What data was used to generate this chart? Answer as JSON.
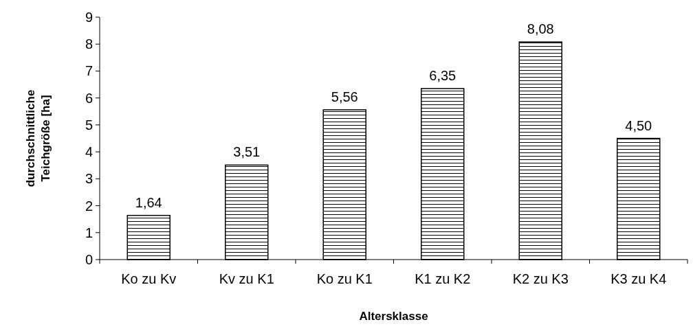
{
  "chart_data": {
    "type": "bar",
    "xlabel": "Altersklasse",
    "ylabel": "durchschnittliche Teichgröße [ha]",
    "categories": [
      "Ko zu Kv",
      "Kv zu K1",
      "Ko zu K1",
      "K1 zu K2",
      "K2 zu K3",
      "K3 zu K4"
    ],
    "values": [
      1.64,
      3.51,
      5.56,
      6.35,
      8.08,
      4.5
    ],
    "value_labels": [
      "1,64",
      "3,51",
      "5,56",
      "6,35",
      "8,08",
      "4,50"
    ],
    "color": "#000000",
    "ylim": [
      0,
      9
    ],
    "yticks": [
      0,
      1,
      2,
      3,
      4,
      5,
      6,
      7,
      8,
      9
    ],
    "grid": false
  }
}
